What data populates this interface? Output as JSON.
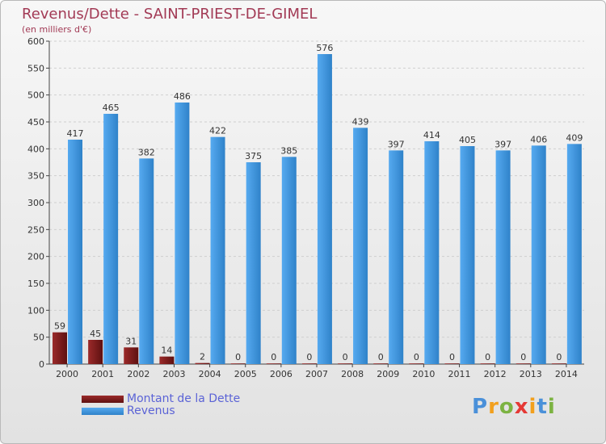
{
  "chart_data": {
    "type": "bar",
    "title": "Revenus/Dette - SAINT-PRIEST-DE-GIMEL",
    "subtitle": "(en milliers d'€)",
    "xlabel": "",
    "ylabel": "",
    "ylim": [
      0,
      600
    ],
    "yticks": [
      0,
      50,
      100,
      150,
      200,
      250,
      300,
      350,
      400,
      450,
      500,
      550,
      600
    ],
    "grid": true,
    "legend_position": "bottom-left",
    "categories": [
      "2000",
      "2001",
      "2002",
      "2003",
      "2004",
      "2005",
      "2006",
      "2007",
      "2008",
      "2009",
      "2010",
      "2011",
      "2012",
      "2013",
      "2014"
    ],
    "series": [
      {
        "name": "Montant de la Dette",
        "color": "#7a1a1a",
        "values": [
          59,
          45,
          31,
          14,
          2,
          0,
          0,
          0,
          0,
          0,
          0,
          0,
          0,
          0,
          0
        ]
      },
      {
        "name": "Revenus",
        "color": "#3f93d8",
        "values": [
          417,
          465,
          382,
          486,
          422,
          375,
          385,
          576,
          439,
          397,
          414,
          405,
          397,
          406,
          409
        ]
      }
    ]
  },
  "branding": {
    "logo_letters": [
      "P",
      "r",
      "o",
      "x",
      "i",
      "t",
      "i"
    ]
  }
}
